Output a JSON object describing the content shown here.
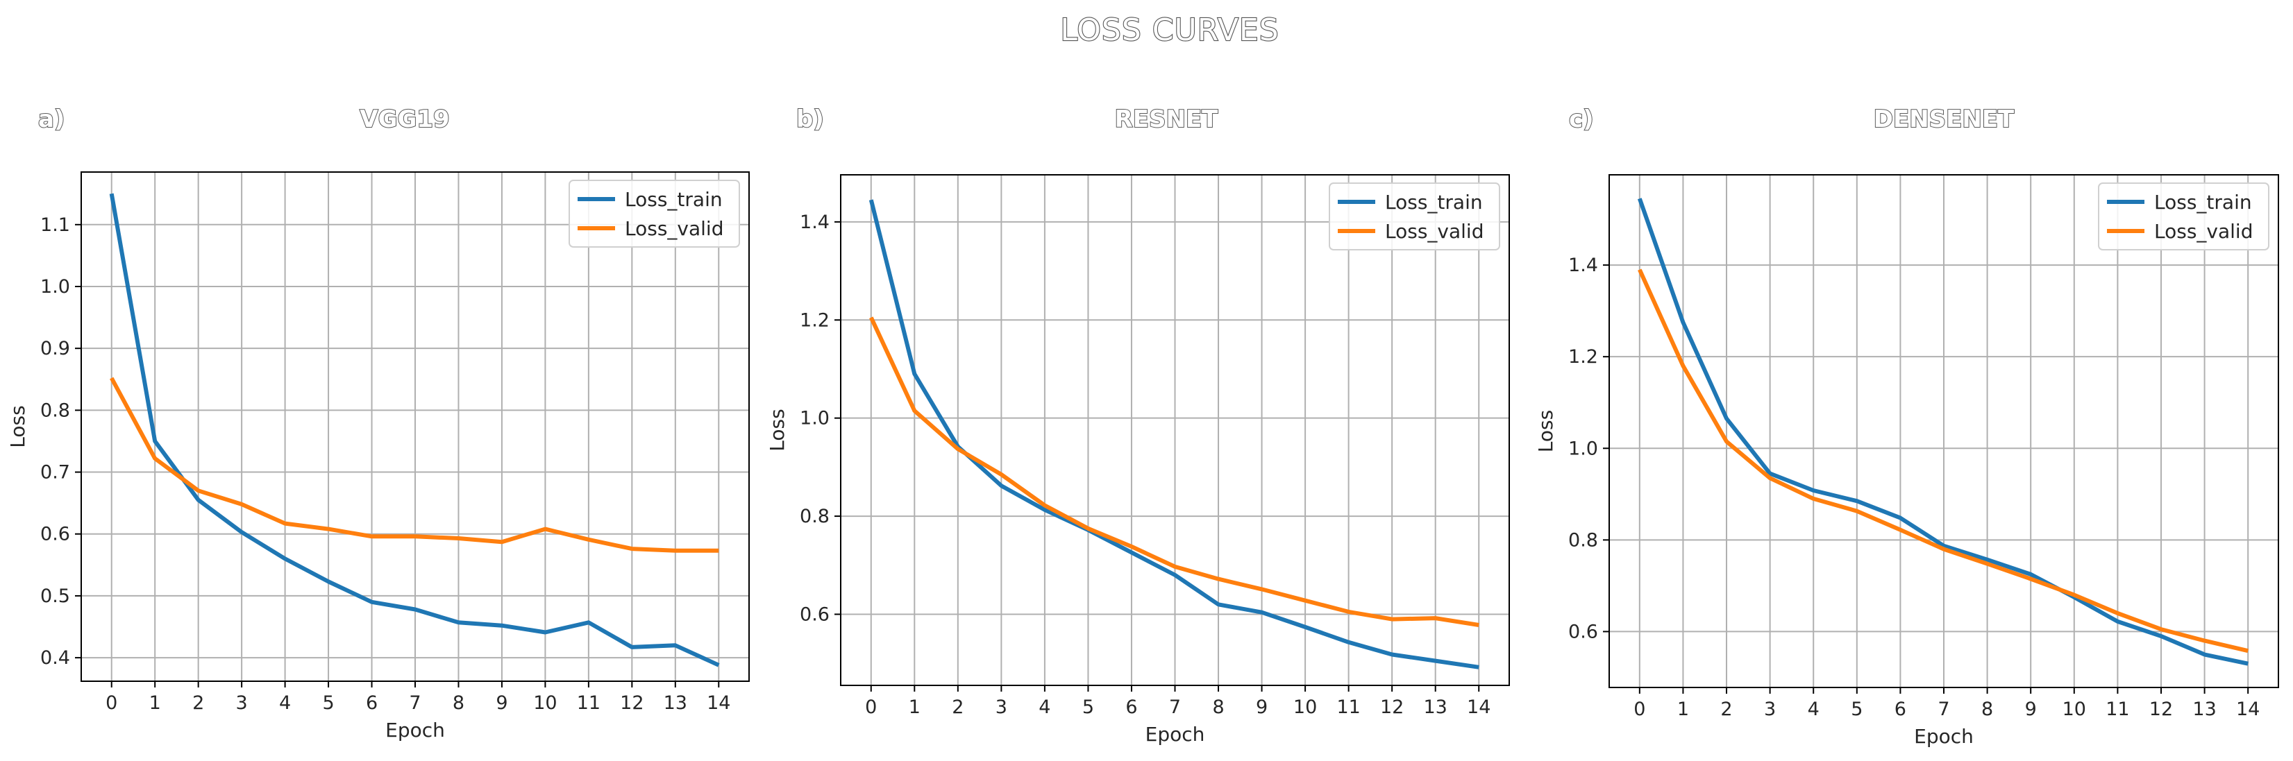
{
  "title": "LOSS CURVES",
  "chart_data": [
    {
      "type": "line",
      "panel_letter": "a)",
      "title": "VGG19",
      "xlabel": "Epoch",
      "ylabel": "Loss",
      "x": [
        0,
        1,
        2,
        3,
        4,
        5,
        6,
        7,
        8,
        9,
        10,
        11,
        12,
        13,
        14
      ],
      "xlim": [
        -0.7,
        14.7
      ],
      "ylim": [
        0.362,
        1.185
      ],
      "yticks": [
        "0.4",
        "0.5",
        "0.6",
        "0.7",
        "0.8",
        "0.9",
        "1.0",
        "1.1"
      ],
      "xticks": [
        "0",
        "1",
        "2",
        "3",
        "4",
        "5",
        "6",
        "7",
        "8",
        "9",
        "10",
        "11",
        "12",
        "13",
        "14"
      ],
      "grid": true,
      "legend_position": "top-right",
      "series": [
        {
          "name": "Loss_train",
          "color": "#1f77b4",
          "values": [
            1.15,
            0.75,
            0.655,
            0.603,
            0.56,
            0.523,
            0.49,
            0.478,
            0.457,
            0.452,
            0.441,
            0.457,
            0.417,
            0.42,
            0.388
          ]
        },
        {
          "name": "Loss_valid",
          "color": "#ff7f0e",
          "values": [
            0.852,
            0.722,
            0.67,
            0.648,
            0.617,
            0.608,
            0.596,
            0.596,
            0.593,
            0.587,
            0.608,
            0.591,
            0.576,
            0.573,
            0.573
          ]
        }
      ]
    },
    {
      "type": "line",
      "panel_letter": "b)",
      "title": "RESNET",
      "xlabel": "Epoch",
      "ylabel": "Loss",
      "x": [
        0,
        1,
        2,
        3,
        4,
        5,
        6,
        7,
        8,
        9,
        10,
        11,
        12,
        13,
        14
      ],
      "xlim": [
        -0.7,
        14.7
      ],
      "ylim": [
        0.455,
        1.496
      ],
      "yticks": [
        "0.6",
        "0.8",
        "1.0",
        "1.2",
        "1.4"
      ],
      "xticks": [
        "0",
        "1",
        "2",
        "3",
        "4",
        "5",
        "6",
        "7",
        "8",
        "9",
        "10",
        "11",
        "12",
        "13",
        "14"
      ],
      "grid": true,
      "legend_position": "top-right",
      "series": [
        {
          "name": "Loss_train",
          "color": "#1f77b4",
          "values": [
            1.445,
            1.09,
            0.942,
            0.862,
            0.813,
            0.772,
            0.726,
            0.68,
            0.62,
            0.604,
            0.574,
            0.543,
            0.518,
            0.505,
            0.492
          ]
        },
        {
          "name": "Loss_valid",
          "color": "#ff7f0e",
          "values": [
            1.205,
            1.015,
            0.937,
            0.885,
            0.822,
            0.775,
            0.738,
            0.697,
            0.672,
            0.651,
            0.628,
            0.605,
            0.59,
            0.592,
            0.578
          ]
        }
      ]
    },
    {
      "type": "line",
      "panel_letter": "c)",
      "title": "DENSENET",
      "xlabel": "Epoch",
      "ylabel": "Loss",
      "x": [
        0,
        1,
        2,
        3,
        4,
        5,
        6,
        7,
        8,
        9,
        10,
        11,
        12,
        13,
        14
      ],
      "xlim": [
        -0.7,
        14.7
      ],
      "ylim": [
        0.478,
        1.597
      ],
      "yticks": [
        "0.6",
        "0.8",
        "1.0",
        "1.2",
        "1.4"
      ],
      "xticks": [
        "0",
        "1",
        "2",
        "3",
        "4",
        "5",
        "6",
        "7",
        "8",
        "9",
        "10",
        "11",
        "12",
        "13",
        "14"
      ],
      "grid": true,
      "legend_position": "top-right",
      "series": [
        {
          "name": "Loss_train",
          "color": "#1f77b4",
          "values": [
            1.545,
            1.275,
            1.065,
            0.945,
            0.908,
            0.885,
            0.848,
            0.787,
            0.757,
            0.725,
            0.675,
            0.622,
            0.59,
            0.55,
            0.53
          ]
        },
        {
          "name": "Loss_valid",
          "color": "#ff7f0e",
          "values": [
            1.39,
            1.18,
            1.015,
            0.935,
            0.89,
            0.863,
            0.822,
            0.78,
            0.748,
            0.715,
            0.68,
            0.64,
            0.605,
            0.58,
            0.558
          ]
        }
      ]
    }
  ]
}
